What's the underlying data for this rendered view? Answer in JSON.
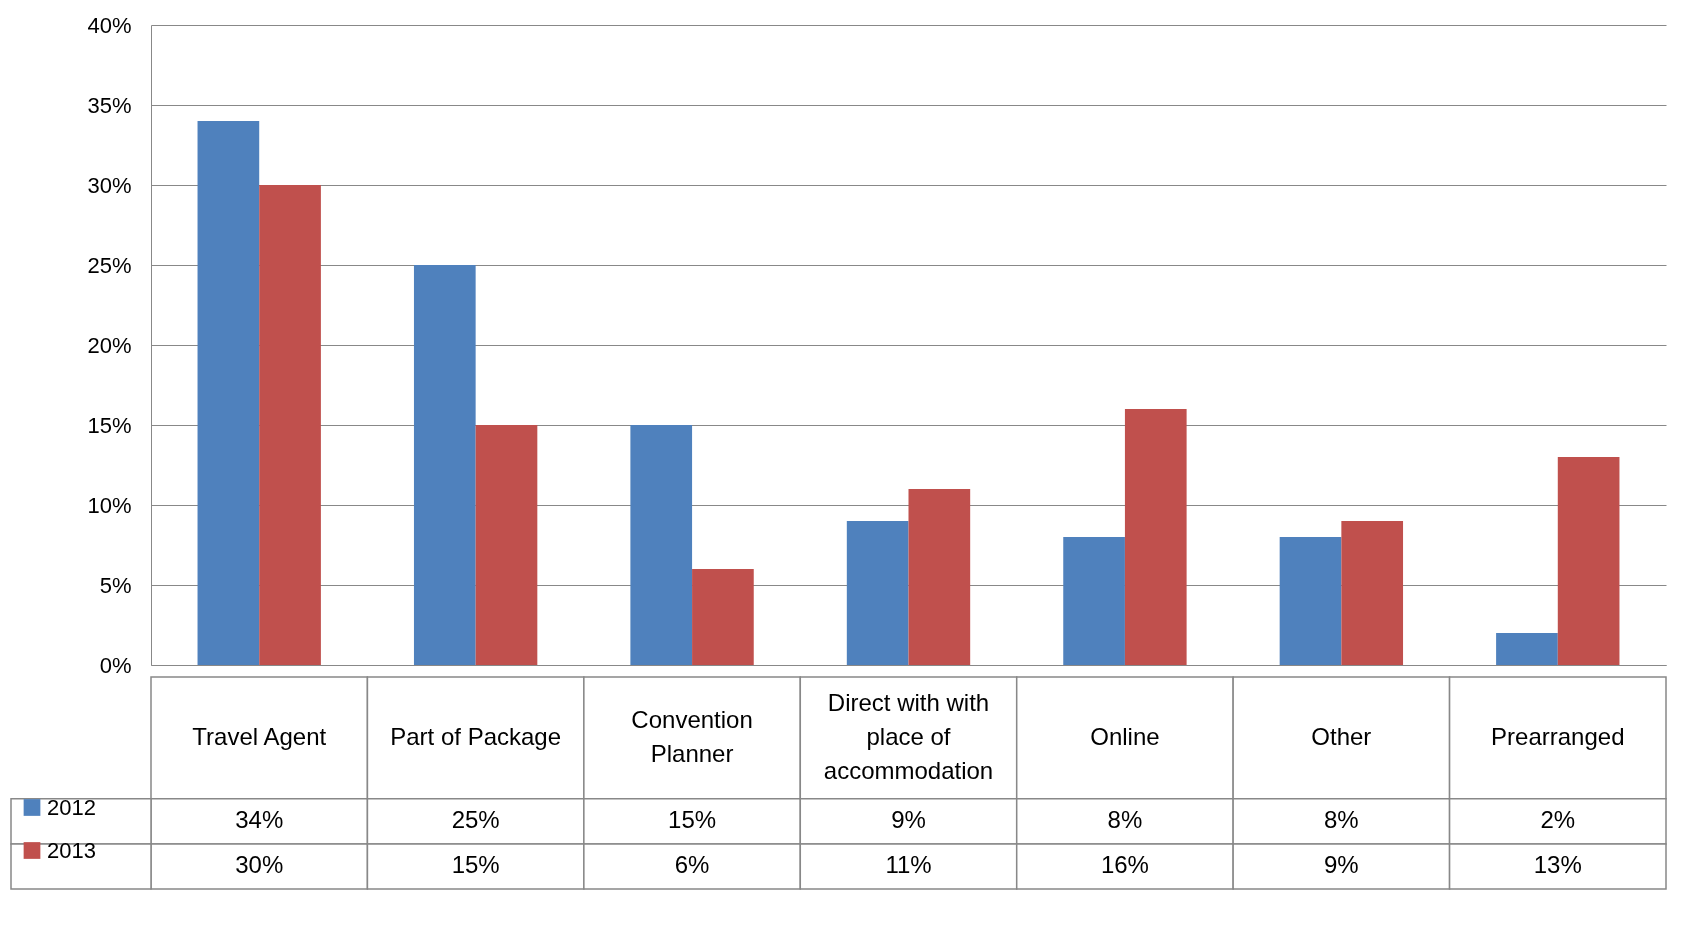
{
  "chart_data": {
    "type": "bar",
    "categories": [
      "Travel Agent",
      "Part of Package",
      "Convention Planner",
      "Direct with with place of accommodation",
      "Online",
      "Other",
      "Prearranged"
    ],
    "series": [
      {
        "name": "2012",
        "color": "#4f81bd",
        "values": [
          34,
          25,
          15,
          9,
          8,
          8,
          2
        ],
        "value_labels": [
          "34%",
          "25%",
          "15%",
          "9%",
          "8%",
          "8%",
          "2%"
        ]
      },
      {
        "name": "2013",
        "color": "#c0504d",
        "values": [
          30,
          15,
          6,
          11,
          16,
          9,
          13
        ],
        "value_labels": [
          "30%",
          "15%",
          "6%",
          "11%",
          "16%",
          "9%",
          "13%"
        ]
      }
    ],
    "ylim": [
      0,
      40
    ],
    "yticks": [
      {
        "value": 0,
        "label": "0%"
      },
      {
        "value": 5,
        "label": "5%"
      },
      {
        "value": 10,
        "label": "10%"
      },
      {
        "value": 15,
        "label": "15%"
      },
      {
        "value": 20,
        "label": "20%"
      },
      {
        "value": 25,
        "label": "25%"
      },
      {
        "value": 30,
        "label": "30%"
      },
      {
        "value": 35,
        "label": "35%"
      },
      {
        "value": 40,
        "label": "40%"
      }
    ],
    "grid": "y",
    "legend": "bottom left"
  }
}
